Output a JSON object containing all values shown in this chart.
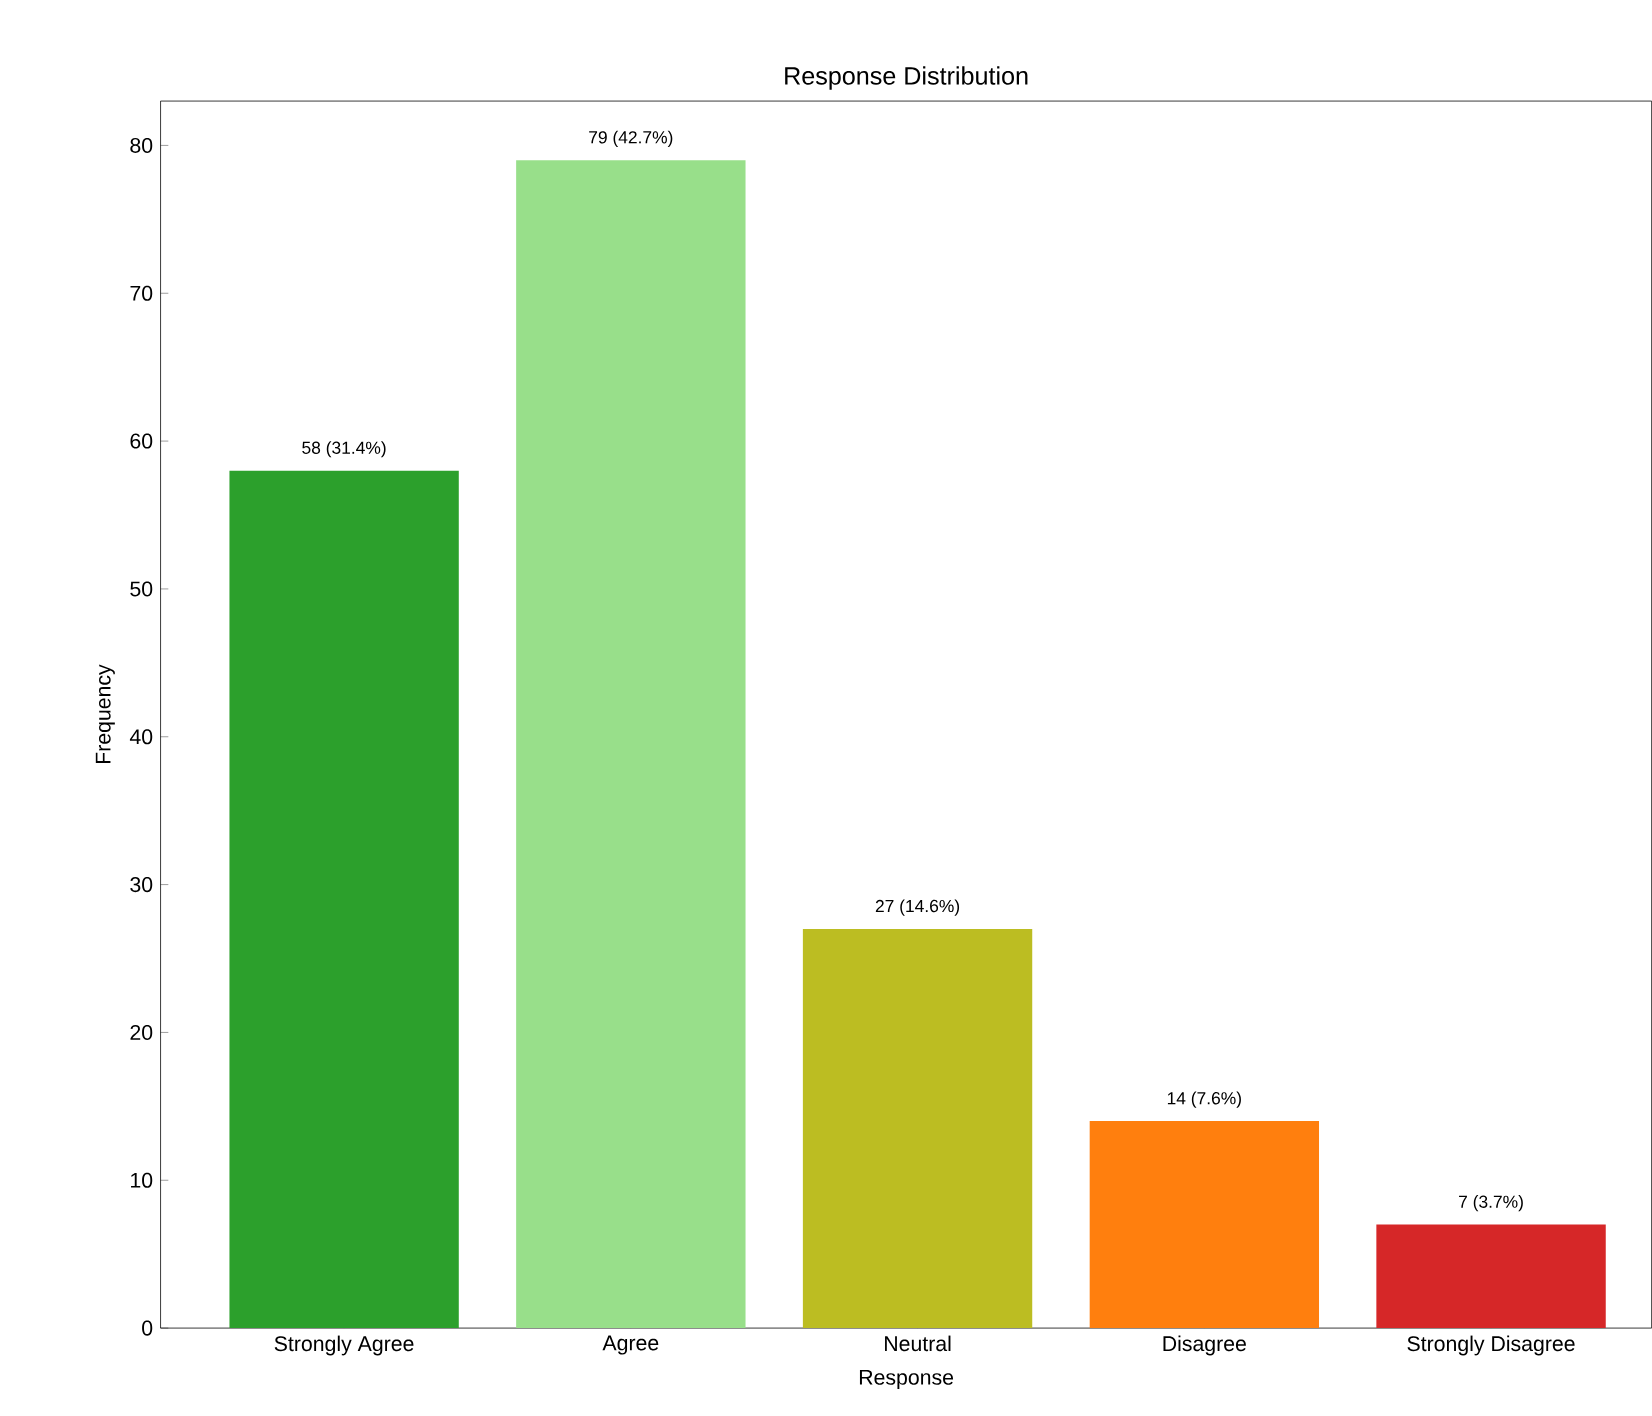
{
  "chart_data": {
    "type": "bar",
    "title": "Response Distribution",
    "xlabel": "Response",
    "ylabel": "Frequency",
    "categories": [
      "Strongly Agree",
      "Agree",
      "Neutral",
      "Disagree",
      "Strongly Disagree"
    ],
    "values": [
      58,
      79,
      27,
      14,
      7
    ],
    "colors": [
      "#2ca02c",
      "#98df8a",
      "#bcbd22",
      "#ff7f0e",
      "#d62728"
    ],
    "value_labels": [
      "58 (31.4%)",
      "79 (42.7%)",
      "27 (14.6%)",
      "14 (7.6%)",
      "7 (3.7%)"
    ],
    "ylim": [
      0,
      83
    ],
    "yticks": [
      0,
      10,
      20,
      30,
      40,
      50,
      60,
      70,
      80
    ]
  }
}
